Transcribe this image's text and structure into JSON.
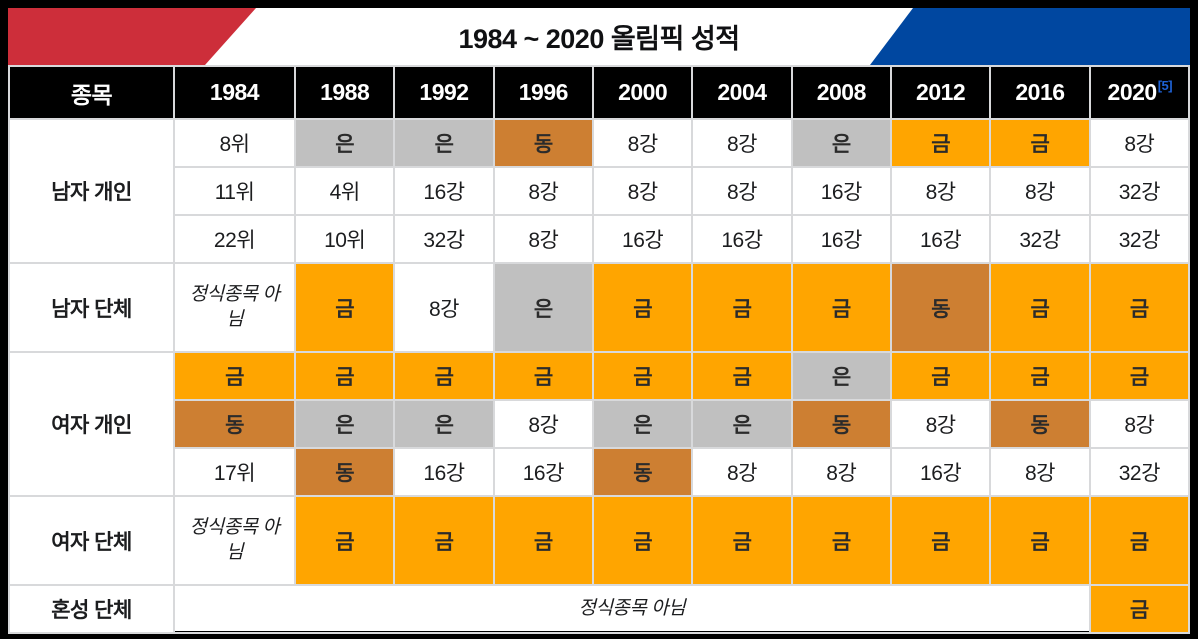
{
  "title": "1984 ~ 2020 올림픽 성적",
  "colors": {
    "flag_red": "#CD2E3A",
    "flag_blue": "#0047A0",
    "gold": "#FFA500",
    "silver": "#C0C0C0",
    "bronze": "#CD7F32",
    "link_blue": "#1E62D6",
    "header_bg": "#000000"
  },
  "table": {
    "event_column_header": "종목",
    "years": [
      "1984",
      "1988",
      "1992",
      "1996",
      "2000",
      "2004",
      "2008",
      "2012",
      "2016",
      "2020"
    ],
    "reference_label": "[5]",
    "groups": [
      {
        "label": "남자 개인",
        "rows": [
          [
            {
              "t": "8위"
            },
            {
              "t": "은",
              "m": "silver"
            },
            {
              "t": "은",
              "m": "silver"
            },
            {
              "t": "동",
              "m": "bronze"
            },
            {
              "t": "8강"
            },
            {
              "t": "8강"
            },
            {
              "t": "은",
              "m": "silver"
            },
            {
              "t": "금",
              "m": "gold"
            },
            {
              "t": "금",
              "m": "gold"
            },
            {
              "t": "8강"
            }
          ],
          [
            {
              "t": "11위"
            },
            {
              "t": "4위"
            },
            {
              "t": "16강"
            },
            {
              "t": "8강"
            },
            {
              "t": "8강"
            },
            {
              "t": "8강"
            },
            {
              "t": "16강"
            },
            {
              "t": "8강"
            },
            {
              "t": "8강"
            },
            {
              "t": "32강"
            }
          ],
          [
            {
              "t": "22위"
            },
            {
              "t": "10위"
            },
            {
              "t": "32강"
            },
            {
              "t": "8강"
            },
            {
              "t": "16강"
            },
            {
              "t": "16강"
            },
            {
              "t": "16강"
            },
            {
              "t": "16강"
            },
            {
              "t": "32강"
            },
            {
              "t": "32강"
            }
          ]
        ]
      },
      {
        "label": "남자 단체",
        "tall": true,
        "rows": [
          [
            {
              "t": "정식종목 아님",
              "i": true
            },
            {
              "t": "금",
              "m": "gold"
            },
            {
              "t": "8강"
            },
            {
              "t": "은",
              "m": "silver"
            },
            {
              "t": "금",
              "m": "gold"
            },
            {
              "t": "금",
              "m": "gold"
            },
            {
              "t": "금",
              "m": "gold"
            },
            {
              "t": "동",
              "m": "bronze"
            },
            {
              "t": "금",
              "m": "gold"
            },
            {
              "t": "금",
              "m": "gold"
            }
          ]
        ]
      },
      {
        "label": "여자 개인",
        "rows": [
          [
            {
              "t": "금",
              "m": "gold"
            },
            {
              "t": "금",
              "m": "gold"
            },
            {
              "t": "금",
              "m": "gold"
            },
            {
              "t": "금",
              "m": "gold"
            },
            {
              "t": "금",
              "m": "gold"
            },
            {
              "t": "금",
              "m": "gold"
            },
            {
              "t": "은",
              "m": "silver"
            },
            {
              "t": "금",
              "m": "gold"
            },
            {
              "t": "금",
              "m": "gold"
            },
            {
              "t": "금",
              "m": "gold"
            }
          ],
          [
            {
              "t": "동",
              "m": "bronze"
            },
            {
              "t": "은",
              "m": "silver"
            },
            {
              "t": "은",
              "m": "silver"
            },
            {
              "t": "8강"
            },
            {
              "t": "은",
              "m": "silver"
            },
            {
              "t": "은",
              "m": "silver"
            },
            {
              "t": "동",
              "m": "bronze"
            },
            {
              "t": "8강"
            },
            {
              "t": "동",
              "m": "bronze"
            },
            {
              "t": "8강"
            }
          ],
          [
            {
              "t": "17위"
            },
            {
              "t": "동",
              "m": "bronze"
            },
            {
              "t": "16강"
            },
            {
              "t": "16강"
            },
            {
              "t": "동",
              "m": "bronze"
            },
            {
              "t": "8강"
            },
            {
              "t": "8강"
            },
            {
              "t": "16강"
            },
            {
              "t": "8강"
            },
            {
              "t": "32강"
            }
          ]
        ]
      },
      {
        "label": "여자 단체",
        "tall": true,
        "rows": [
          [
            {
              "t": "정식종목 아님",
              "i": true
            },
            {
              "t": "금",
              "m": "gold"
            },
            {
              "t": "금",
              "m": "gold"
            },
            {
              "t": "금",
              "m": "gold"
            },
            {
              "t": "금",
              "m": "gold"
            },
            {
              "t": "금",
              "m": "gold"
            },
            {
              "t": "금",
              "m": "gold"
            },
            {
              "t": "금",
              "m": "gold"
            },
            {
              "t": "금",
              "m": "gold"
            },
            {
              "t": "금",
              "m": "gold"
            }
          ]
        ]
      },
      {
        "label": "혼성 단체",
        "rows": [
          [
            {
              "t": "정식종목 아님",
              "i": true,
              "span": 9
            },
            {
              "t": "금",
              "m": "gold"
            }
          ]
        ]
      }
    ]
  }
}
